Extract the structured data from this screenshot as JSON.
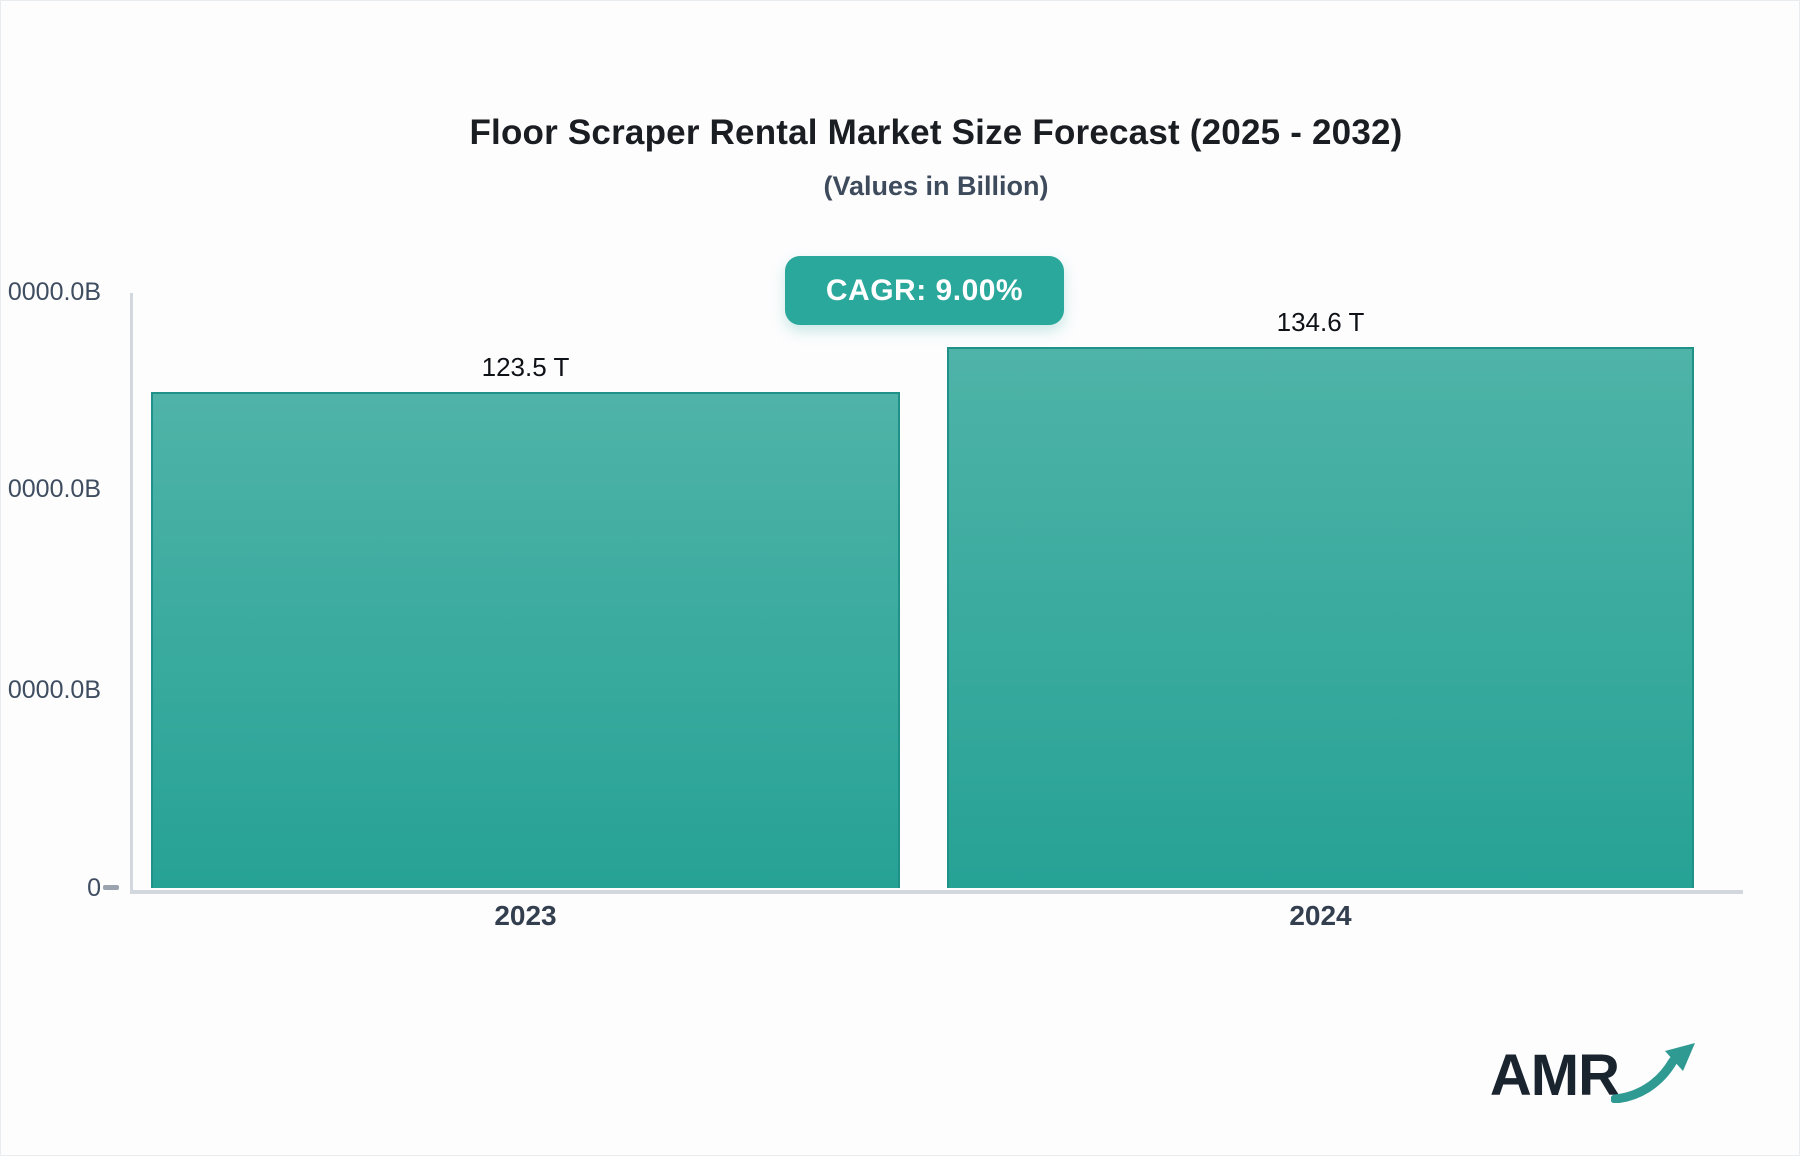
{
  "header": {
    "title": "Floor Scraper Rental Market Size Forecast (2025 - 2032)",
    "subtitle": "(Values in Billion)",
    "cagr_badge": "CAGR: 9.00%"
  },
  "logo": {
    "text": "AMR",
    "arrow_icon": "growth-arrow-icon",
    "text_color": "#1a242f",
    "arrow_color": "#2f9a92"
  },
  "colors": {
    "accent_teal": "#2aa89b",
    "bar_gradient_top": "#4fb3a8",
    "bar_gradient_bottom": "#26a295",
    "bar_border": "#1f9188",
    "axis_line": "#d3d8de",
    "title_text": "#1a1e23",
    "subtitle_text": "#3e4b5d",
    "axis_label_text": "#3f4d60"
  },
  "chart_data": {
    "type": "bar",
    "title": "Floor Scraper Rental Market Size Forecast (2025 - 2032)",
    "subtitle": "(Values in Billion)",
    "cagr_label": "CAGR: 9.00%",
    "cagr_percent": 9.0,
    "unit": "Billion",
    "categories": [
      "2023",
      "2024"
    ],
    "values": [
      123.5,
      134.6
    ],
    "value_labels": [
      "123.5 T",
      "134.6 T"
    ],
    "y_tick_labels": [
      "0000.0B",
      "0000.0B",
      "0000.0B",
      "0"
    ],
    "grid": "off",
    "legend": "none"
  }
}
